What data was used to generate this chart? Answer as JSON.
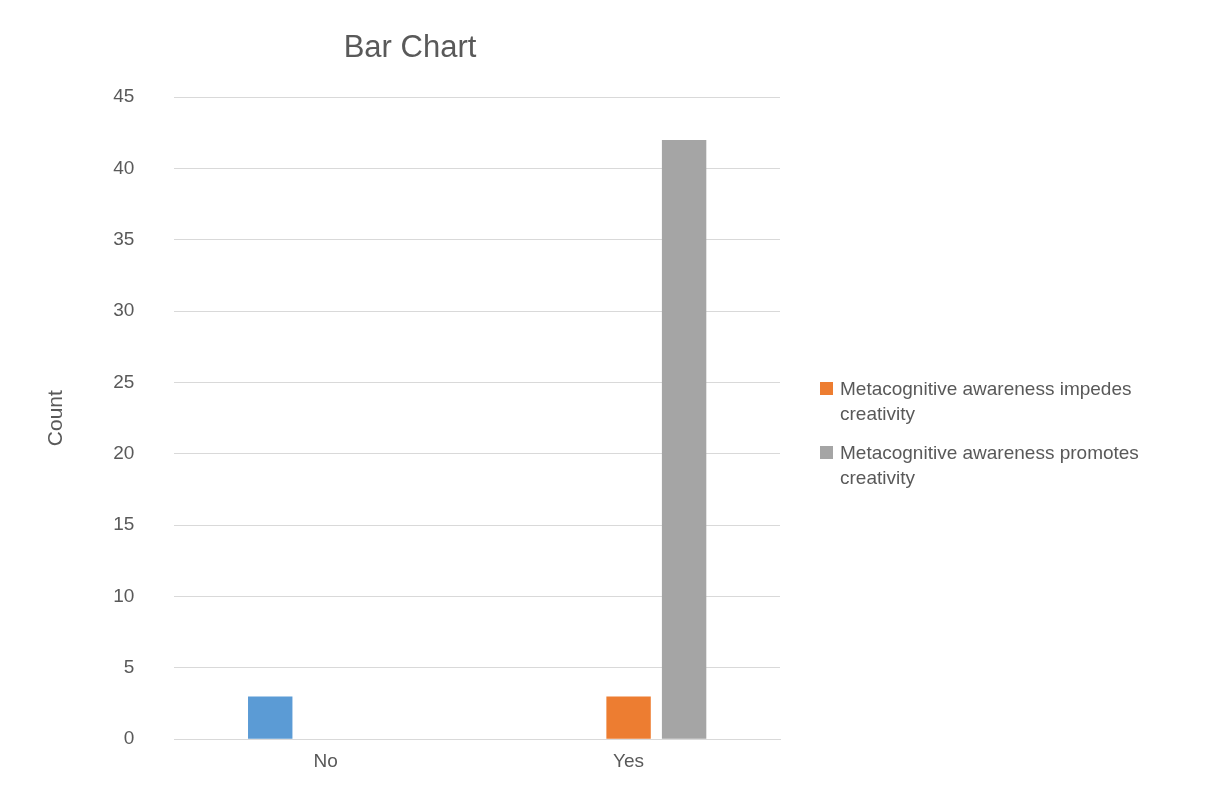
{
  "chart_data": {
    "type": "bar",
    "title": "Bar Chart",
    "ylabel": "Count",
    "categories": [
      "No",
      "Yes"
    ],
    "series": [
      {
        "color": "#5b9bd5",
        "values": [
          3,
          null
        ]
      },
      {
        "name": "Metacognitive awareness impedes creativity",
        "color": "#ed7d31",
        "values": [
          null,
          3
        ]
      },
      {
        "name": "Metacognitive awareness promotes creativity",
        "color": "#a5a5a5",
        "values": [
          null,
          42
        ]
      }
    ],
    "ylim": [
      0,
      45
    ],
    "yticks": [
      0,
      5,
      10,
      15,
      20,
      25,
      30,
      35,
      40,
      45
    ],
    "grid": "y",
    "legend": "right"
  }
}
